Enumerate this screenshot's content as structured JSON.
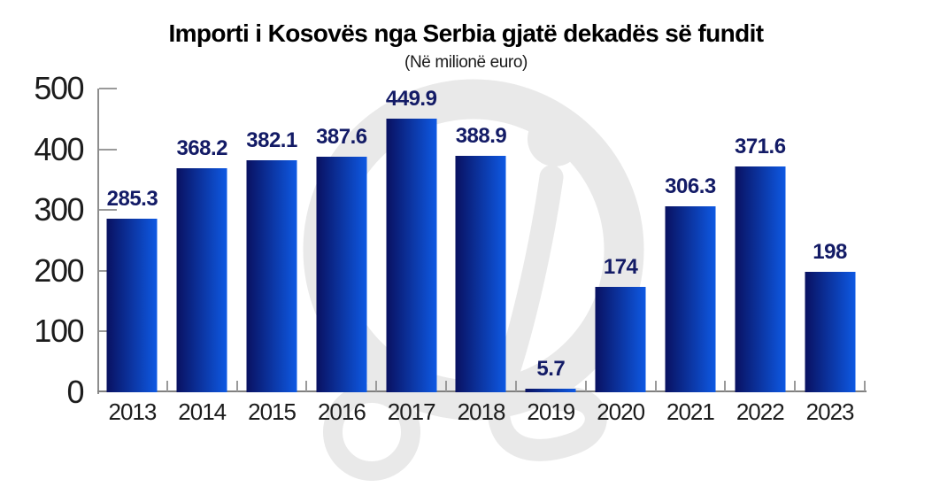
{
  "chart_data": {
    "type": "bar",
    "title": "Importi i Kosovës nga Serbia gjatë dekadës së fundit",
    "subtitle": "(Në milionë euro)",
    "categories": [
      "2013",
      "2014",
      "2015",
      "2016",
      "2017",
      "2018",
      "2019",
      "2020",
      "2021",
      "2022",
      "2023"
    ],
    "values": [
      285.3,
      368.2,
      382.1,
      387.6,
      449.9,
      388.9,
      5.7,
      174,
      306.3,
      371.6,
      198
    ],
    "value_labels": [
      "285.3",
      "368.2",
      "382.1",
      "387.6",
      "449.9",
      "388.9",
      "5.7",
      "174",
      "306.3",
      "371.6",
      "198"
    ],
    "xlabel": "",
    "ylabel": "",
    "ylim": [
      0,
      500
    ],
    "yticks": [
      0,
      100,
      200,
      300,
      400,
      500
    ],
    "grid": false,
    "legend": "none",
    "bar_gradient_left": "#091161",
    "bar_gradient_right": "#0e59e3",
    "value_label_color": "#131b66"
  },
  "watermark": {
    "icon": "si-script-logo-watermark",
    "color": "#e9e9e9"
  },
  "colors": {
    "background": "#ffffff",
    "axis": "#8d8d8d",
    "tick_label": "#1c1c1c",
    "title": "#000000"
  }
}
